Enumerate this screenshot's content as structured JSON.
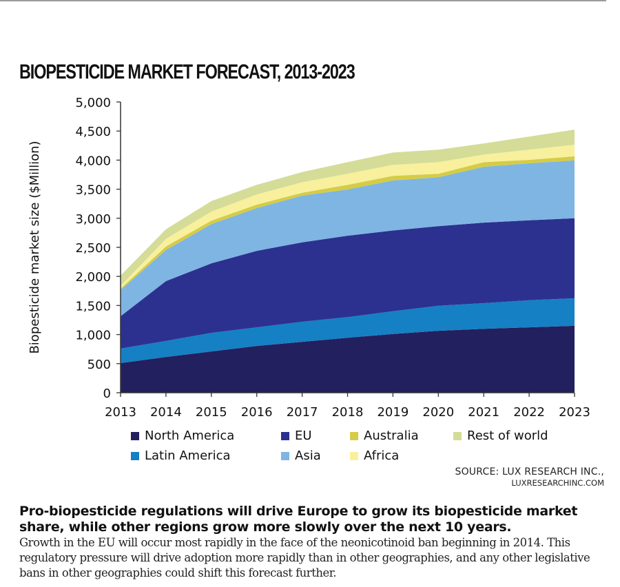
{
  "chart_data": {
    "type": "area",
    "stacked": true,
    "title": "BIOPESTICIDE MARKET FORECAST, 2013-2023",
    "xlabel": "",
    "ylabel": "Biopesticide market size ($Million)",
    "ylim": [
      0,
      5000
    ],
    "yticks": [
      0,
      500,
      1000,
      1500,
      2000,
      2500,
      3000,
      3500,
      4000,
      4500,
      5000
    ],
    "ytick_labels": [
      "0",
      "500",
      "1,000",
      "1,500",
      "2,000",
      "2,500",
      "3,000",
      "3,500",
      "4,000",
      "4,500",
      "5,000"
    ],
    "x": [
      "2013",
      "2014",
      "2015",
      "2016",
      "2017",
      "2018",
      "2019",
      "2020",
      "2021",
      "2022",
      "2023"
    ],
    "grid": false,
    "legend_position": "bottom",
    "series": [
      {
        "name": "North America",
        "color": "#23205f",
        "values": [
          510,
          615,
          710,
          805,
          875,
          945,
          1010,
          1065,
          1100,
          1125,
          1150
        ]
      },
      {
        "name": "Latin America",
        "color": "#1580c4",
        "values": [
          250,
          275,
          320,
          320,
          345,
          355,
          390,
          430,
          440,
          465,
          475
        ]
      },
      {
        "name": "EU",
        "color": "#2c3190",
        "values": [
          555,
          1030,
          1195,
          1315,
          1365,
          1400,
          1390,
          1370,
          1385,
          1375,
          1375
        ]
      },
      {
        "name": "Asia",
        "color": "#7eb5e3",
        "values": [
          450,
          535,
          675,
          735,
          805,
          795,
          860,
          840,
          960,
          980,
          995
        ]
      },
      {
        "name": "Australia",
        "color": "#d5cc46",
        "values": [
          25,
          60,
          60,
          60,
          50,
          80,
          80,
          60,
          80,
          60,
          70
        ]
      },
      {
        "name": "Africa",
        "color": "#f8f09d",
        "values": [
          45,
          130,
          155,
          175,
          180,
          190,
          190,
          200,
          130,
          175,
          200
        ]
      },
      {
        "name": "Rest of world",
        "color": "#d4dc98",
        "values": [
          180,
          165,
          180,
          165,
          175,
          200,
          210,
          215,
          190,
          225,
          260
        ]
      }
    ]
  },
  "legend": {
    "row1": [
      {
        "label": "North America",
        "color": "#23205f"
      },
      {
        "label": "EU",
        "color": "#2c3190"
      },
      {
        "label": "Australia",
        "color": "#d5cc46"
      },
      {
        "label": "Rest of world",
        "color": "#d4dc98"
      }
    ],
    "row2": [
      {
        "label": "Latin America",
        "color": "#1580c4"
      },
      {
        "label": "Asia",
        "color": "#7eb5e3"
      },
      {
        "label": "Africa",
        "color": "#f8f09d"
      }
    ]
  },
  "source": {
    "line1": "SOURCE: LUX RESEARCH INC.,",
    "line2": "LUXRESEARCHINC.COM"
  },
  "caption": {
    "headline": "Pro-biopesticide regulations will drive Europe to grow its biopesticide market share, while other regions grow more slowly over the next 10 years.",
    "body": "Growth in the EU will occur most rapidly in the face of the neonicotinoid ban beginning in 2014. This regulatory pressure will drive adoption more rapidly than in other geographies, and any other legislative bans in other geographies could shift this forecast further."
  }
}
